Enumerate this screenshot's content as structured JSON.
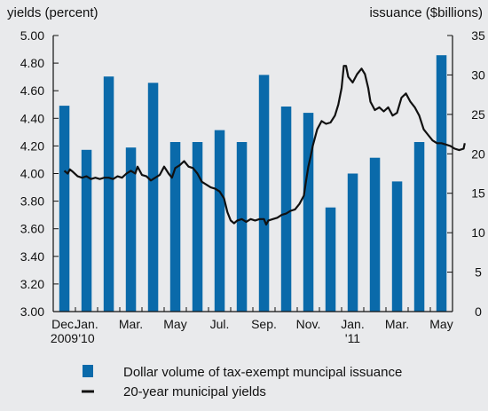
{
  "chart_data": {
    "type": "bar",
    "left_axis_title": "yields (percent)",
    "right_axis_title": "issuance ($billions)",
    "left_ticks": [
      "5.00",
      "4.80",
      "4.60",
      "4.40",
      "4.20",
      "4.00",
      "3.80",
      "3.60",
      "3.40",
      "3.20",
      "3.00"
    ],
    "right_ticks": [
      "35",
      "30",
      "25",
      "20",
      "15",
      "10",
      "5",
      "0"
    ],
    "left_ylim": [
      3.0,
      5.0
    ],
    "right_ylim": [
      0,
      35
    ],
    "x_label_rows": [
      [
        "Dec.",
        "Jan.",
        "Mar.",
        "May",
        "Jul.",
        "Sep.",
        "Nov.",
        "Jan.",
        "Mar.",
        "May"
      ],
      [
        "2009",
        "'10",
        "",
        "",
        "",
        "",
        "",
        "'11",
        "",
        ""
      ]
    ],
    "x_label_months": [
      0,
      1,
      3,
      5,
      7,
      9,
      11,
      13,
      15,
      17
    ],
    "months": [
      "Dec. 2009",
      "Jan. 2010",
      "Feb. 2010",
      "Mar. 2010",
      "Apr. 2010",
      "May 2010",
      "Jun. 2010",
      "Jul. 2010",
      "Aug. 2010",
      "Sep. 2010",
      "Oct. 2010",
      "Nov. 2010",
      "Dec. 2010",
      "Jan. 2011",
      "Feb. 2011",
      "Mar. 2011",
      "Apr. 2011",
      "May 2011"
    ],
    "series": [
      {
        "name": "Dollar volume of tax-exempt muncipal issuance",
        "kind": "bar",
        "axis": "right",
        "color": "#0a6aaa",
        "values": [
          26.1,
          20.5,
          29.8,
          20.8,
          29.0,
          21.5,
          21.5,
          23.0,
          21.5,
          30.0,
          26.0,
          25.2,
          13.2,
          17.5,
          19.5,
          16.5,
          21.5,
          32.5
        ]
      },
      {
        "name": "20-year municipal yields",
        "kind": "line",
        "axis": "left",
        "color": "#111111",
        "points": [
          [
            0.0,
            4.02
          ],
          [
            0.15,
            4.0
          ],
          [
            0.25,
            4.03
          ],
          [
            0.4,
            4.01
          ],
          [
            0.6,
            3.98
          ],
          [
            0.8,
            3.97
          ],
          [
            1.0,
            3.98
          ],
          [
            1.2,
            3.96
          ],
          [
            1.4,
            3.97
          ],
          [
            1.6,
            3.96
          ],
          [
            1.8,
            3.97
          ],
          [
            2.0,
            3.97
          ],
          [
            2.2,
            3.96
          ],
          [
            2.4,
            3.98
          ],
          [
            2.6,
            3.97
          ],
          [
            2.8,
            4.0
          ],
          [
            3.0,
            4.02
          ],
          [
            3.2,
            4.0
          ],
          [
            3.3,
            4.05
          ],
          [
            3.5,
            3.99
          ],
          [
            3.7,
            3.98
          ],
          [
            3.9,
            3.95
          ],
          [
            4.1,
            3.97
          ],
          [
            4.3,
            3.99
          ],
          [
            4.5,
            4.05
          ],
          [
            4.7,
            4.0
          ],
          [
            4.85,
            3.97
          ],
          [
            5.0,
            4.04
          ],
          [
            5.2,
            4.06
          ],
          [
            5.4,
            4.09
          ],
          [
            5.6,
            4.05
          ],
          [
            5.8,
            4.04
          ],
          [
            6.0,
            4.0
          ],
          [
            6.2,
            3.94
          ],
          [
            6.4,
            3.92
          ],
          [
            6.6,
            3.9
          ],
          [
            6.8,
            3.89
          ],
          [
            7.0,
            3.87
          ],
          [
            7.2,
            3.82
          ],
          [
            7.35,
            3.72
          ],
          [
            7.5,
            3.66
          ],
          [
            7.65,
            3.64
          ],
          [
            7.8,
            3.66
          ],
          [
            8.0,
            3.67
          ],
          [
            8.2,
            3.65
          ],
          [
            8.4,
            3.67
          ],
          [
            8.6,
            3.66
          ],
          [
            8.8,
            3.67
          ],
          [
            9.0,
            3.67
          ],
          [
            9.1,
            3.63
          ],
          [
            9.2,
            3.66
          ],
          [
            9.4,
            3.67
          ],
          [
            9.6,
            3.68
          ],
          [
            9.8,
            3.7
          ],
          [
            10.0,
            3.71
          ],
          [
            10.2,
            3.73
          ],
          [
            10.4,
            3.74
          ],
          [
            10.6,
            3.78
          ],
          [
            10.8,
            3.84
          ],
          [
            10.9,
            3.95
          ],
          [
            11.0,
            4.05
          ],
          [
            11.1,
            4.12
          ],
          [
            11.2,
            4.2
          ],
          [
            11.4,
            4.32
          ],
          [
            11.6,
            4.38
          ],
          [
            11.8,
            4.36
          ],
          [
            12.0,
            4.37
          ],
          [
            12.2,
            4.42
          ],
          [
            12.35,
            4.5
          ],
          [
            12.5,
            4.62
          ],
          [
            12.6,
            4.78
          ],
          [
            12.7,
            4.78
          ],
          [
            12.8,
            4.7
          ],
          [
            12.9,
            4.68
          ],
          [
            13.0,
            4.66
          ],
          [
            13.2,
            4.72
          ],
          [
            13.4,
            4.76
          ],
          [
            13.55,
            4.72
          ],
          [
            13.7,
            4.62
          ],
          [
            13.8,
            4.52
          ],
          [
            14.0,
            4.46
          ],
          [
            14.2,
            4.48
          ],
          [
            14.4,
            4.45
          ],
          [
            14.6,
            4.48
          ],
          [
            14.8,
            4.42
          ],
          [
            15.0,
            4.44
          ],
          [
            15.2,
            4.55
          ],
          [
            15.4,
            4.58
          ],
          [
            15.6,
            4.52
          ],
          [
            15.8,
            4.48
          ],
          [
            16.0,
            4.42
          ],
          [
            16.2,
            4.32
          ],
          [
            16.4,
            4.28
          ],
          [
            16.6,
            4.24
          ],
          [
            16.8,
            4.22
          ],
          [
            17.0,
            4.22
          ],
          [
            17.2,
            4.21
          ],
          [
            17.4,
            4.2
          ],
          [
            17.6,
            4.18
          ],
          [
            17.8,
            4.17
          ],
          [
            18.0,
            4.18
          ],
          [
            18.05,
            4.22
          ]
        ]
      }
    ],
    "legend_position": "bottom",
    "grid": false
  }
}
